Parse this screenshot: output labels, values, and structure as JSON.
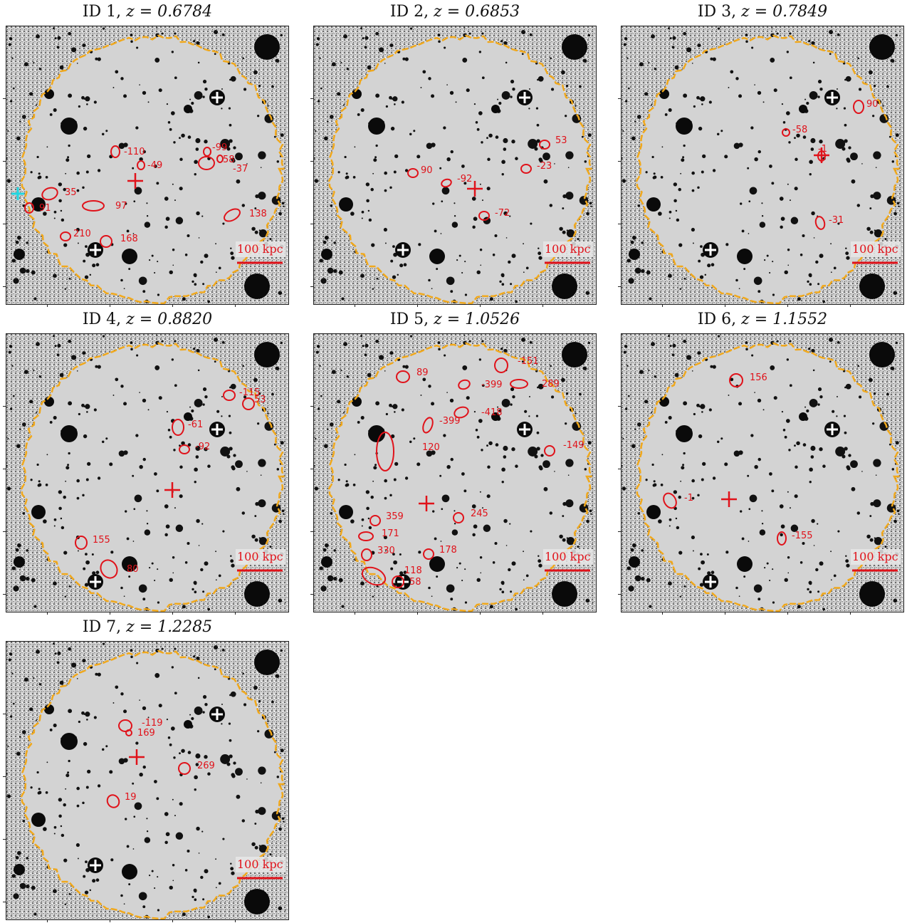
{
  "colors": {
    "marker": "#e0121a",
    "aperture": "#f0a81c",
    "star_cross": "#ffffff",
    "cyan_cross": "#1fd6e0",
    "background_field": "#d3d3d3"
  },
  "panels": [
    {
      "id_label": "ID 1,",
      "z_label": "z = 0.6784",
      "scale_label": "100 kpc",
      "cyan_cross": true,
      "members": [
        {
          "velocity": "-110"
        },
        {
          "velocity": "-49"
        },
        {
          "velocity": "-99"
        },
        {
          "velocity": "58"
        },
        {
          "velocity": "-37"
        },
        {
          "velocity": "35"
        },
        {
          "velocity": "97"
        },
        {
          "velocity": "91"
        },
        {
          "velocity": "138"
        },
        {
          "velocity": "210"
        },
        {
          "velocity": "168"
        }
      ]
    },
    {
      "id_label": "ID 2,",
      "z_label": "z = 0.6853",
      "scale_label": "100 kpc",
      "cyan_cross": false,
      "members": [
        {
          "velocity": "53"
        },
        {
          "velocity": "90"
        },
        {
          "velocity": "-92"
        },
        {
          "velocity": "-23"
        },
        {
          "velocity": "-72"
        }
      ]
    },
    {
      "id_label": "ID 3,",
      "z_label": "z = 0.7849",
      "scale_label": "100 kpc",
      "cyan_cross": false,
      "members": [
        {
          "velocity": "90"
        },
        {
          "velocity": "-58"
        },
        {
          "velocity": "-1"
        },
        {
          "velocity": "-31"
        }
      ]
    },
    {
      "id_label": "ID 4,",
      "z_label": "z = 0.8820",
      "scale_label": "100 kpc",
      "cyan_cross": false,
      "members": [
        {
          "velocity": "-115"
        },
        {
          "velocity": "53"
        },
        {
          "velocity": "-61"
        },
        {
          "velocity": "-92"
        },
        {
          "velocity": "155"
        },
        {
          "velocity": "80"
        }
      ]
    },
    {
      "id_label": "ID 5,",
      "z_label": "z = 1.0526",
      "scale_label": "100 kpc",
      "cyan_cross": false,
      "members": [
        {
          "velocity": "89"
        },
        {
          "velocity": "-151"
        },
        {
          "velocity": "-399"
        },
        {
          "velocity": "289"
        },
        {
          "velocity": "-418"
        },
        {
          "velocity": "-399"
        },
        {
          "velocity": "120"
        },
        {
          "velocity": "-149"
        },
        {
          "velocity": "359"
        },
        {
          "velocity": "245"
        },
        {
          "velocity": "171"
        },
        {
          "velocity": "330"
        },
        {
          "velocity": "178"
        },
        {
          "velocity": "118"
        },
        {
          "velocity": "58"
        }
      ]
    },
    {
      "id_label": "ID 6,",
      "z_label": "z = 1.1552",
      "scale_label": "100 kpc",
      "cyan_cross": false,
      "members": [
        {
          "velocity": "156"
        },
        {
          "velocity": "-1"
        },
        {
          "velocity": "-155"
        }
      ]
    },
    {
      "id_label": "ID 7,",
      "z_label": "z = 1.2285",
      "scale_label": "100 kpc",
      "cyan_cross": false,
      "members": [
        {
          "velocity": "-119"
        },
        {
          "velocity": "169"
        },
        {
          "velocity": "269"
        },
        {
          "velocity": "19"
        }
      ]
    }
  ]
}
